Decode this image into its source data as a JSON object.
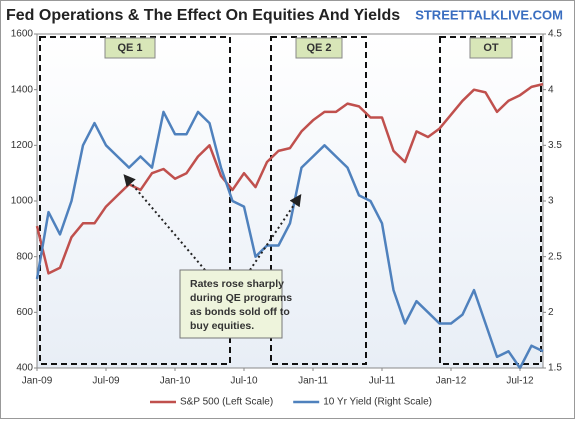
{
  "chart_data": {
    "type": "line",
    "title": "Fed Operations & The Effect On Equities And Yields",
    "source": "STREETTALKLIVE.COM",
    "x": [
      "2009-01",
      "2009-02",
      "2009-03",
      "2009-04",
      "2009-05",
      "2009-06",
      "2009-07",
      "2009-08",
      "2009-09",
      "2009-10",
      "2009-11",
      "2009-12",
      "2010-01",
      "2010-02",
      "2010-03",
      "2010-04",
      "2010-05",
      "2010-06",
      "2010-07",
      "2010-08",
      "2010-09",
      "2010-10",
      "2010-11",
      "2010-12",
      "2011-01",
      "2011-02",
      "2011-03",
      "2011-04",
      "2011-05",
      "2011-06",
      "2011-07",
      "2011-08",
      "2011-09",
      "2011-10",
      "2011-11",
      "2011-12",
      "2012-01",
      "2012-02",
      "2012-03",
      "2012-04",
      "2012-05",
      "2012-06",
      "2012-07",
      "2012-08",
      "2012-09"
    ],
    "xlim": [
      "2009-01",
      "2012-09"
    ],
    "xticks": [
      {
        "value": "2009-01",
        "label": "Jan-09"
      },
      {
        "value": "2009-07",
        "label": "Jul-09"
      },
      {
        "value": "2010-01",
        "label": "Jan-10"
      },
      {
        "value": "2010-07",
        "label": "Jul-10"
      },
      {
        "value": "2011-01",
        "label": "Jan-11"
      },
      {
        "value": "2011-07",
        "label": "Jul-11"
      },
      {
        "value": "2012-01",
        "label": "Jan-12"
      },
      {
        "value": "2012-07",
        "label": "Jul-12"
      }
    ],
    "ylim": [
      400,
      1600
    ],
    "yticks": [
      400,
      600,
      800,
      1000,
      1200,
      1400,
      1600
    ],
    "y2lim": [
      1.5,
      4.5
    ],
    "y2ticks": [
      1.5,
      2,
      2.5,
      3,
      3.5,
      4,
      4.5
    ],
    "series": [
      {
        "name": "S&P 500 (Left Scale)",
        "color": "#c0504d",
        "values": [
          910,
          740,
          760,
          870,
          920,
          920,
          980,
          1020,
          1060,
          1040,
          1100,
          1115,
          1080,
          1100,
          1160,
          1200,
          1090,
          1040,
          1100,
          1050,
          1140,
          1180,
          1190,
          1250,
          1290,
          1320,
          1320,
          1350,
          1340,
          1300,
          1300,
          1180,
          1140,
          1250,
          1230,
          1260,
          1310,
          1360,
          1400,
          1390,
          1320,
          1360,
          1380,
          1410,
          1420
        ]
      },
      {
        "name": "10 Yr Yield (Right Scale)",
        "color": "#4f81bd",
        "axis": "y2",
        "values": [
          2.3,
          2.9,
          2.7,
          3.0,
          3.5,
          3.7,
          3.5,
          3.4,
          3.3,
          3.4,
          3.3,
          3.8,
          3.6,
          3.6,
          3.8,
          3.7,
          3.3,
          3.0,
          2.95,
          2.5,
          2.6,
          2.6,
          2.8,
          3.3,
          3.4,
          3.5,
          3.4,
          3.3,
          3.05,
          3.0,
          2.8,
          2.2,
          1.9,
          2.1,
          2.0,
          1.9,
          1.9,
          1.98,
          2.2,
          1.9,
          1.6,
          1.65,
          1.5,
          1.7,
          1.65
        ]
      }
    ],
    "regions": [
      "QE 1",
      "QE 2",
      "OT"
    ],
    "annotation": [
      "Rates rose sharply",
      "during QE programs",
      "as bonds sold off to",
      "buy equities."
    ],
    "grid": false
  }
}
